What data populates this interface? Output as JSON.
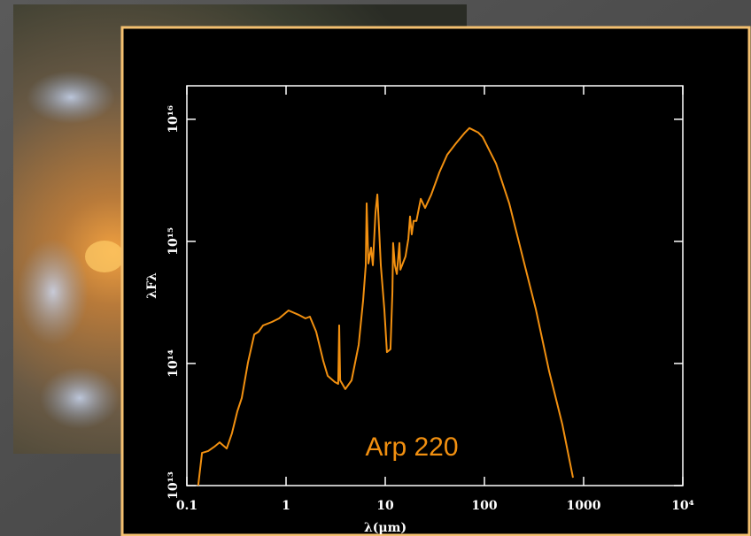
{
  "chart_data": {
    "type": "line",
    "annotation": "Arp 220",
    "x_label": "λ(μm)",
    "y_label": "λFλ",
    "log_x": true,
    "log_y": true,
    "xlim": [
      0.1,
      10000
    ],
    "ylim": [
      10000000000000.0,
      1.88e+16
    ],
    "xticks": [
      0.1,
      1,
      10,
      100,
      1000,
      {
        "value": 10000,
        "label": "10⁴"
      }
    ],
    "yticks": [
      {
        "value": 10000000000000.0,
        "label": "10¹³"
      },
      {
        "value": 100000000000000.0,
        "label": "10¹⁴"
      },
      {
        "value": 1000000000000000.0,
        "label": "10¹⁵"
      },
      {
        "value": 1e+16,
        "label": "10¹⁶"
      }
    ],
    "series": [
      {
        "color": "#f29010",
        "x": [
          0.13,
          0.142,
          0.164,
          0.189,
          0.214,
          0.252,
          0.285,
          0.323,
          0.358,
          0.413,
          0.478,
          0.529,
          0.586,
          0.72,
          0.85,
          1.06,
          1.33,
          1.57,
          1.74,
          2.01,
          2.37,
          2.63,
          3.1,
          3.36,
          3.43,
          3.51,
          3.96,
          4.58,
          5.4,
          5.98,
          6.36,
          6.5,
          6.77,
          7.2,
          7.5,
          7.98,
          8.32,
          8.67,
          9.03,
          9.79,
          10.4,
          11.3,
          11.8,
          12.0,
          12.5,
          13.1,
          13.9,
          14.2,
          16.0,
          17.1,
          17.8,
          18.5,
          19.3,
          20.6,
          22.8,
          25.2,
          29.1,
          35.1,
          42.2,
          51.8,
          63.6,
          70.5,
          86.7,
          96,
          131,
          178,
          242,
          330,
          449,
          611,
          782
        ],
        "values": [
          10000000000000.0,
          18500000000000.0,
          19200000000000.0,
          20800000000000.0,
          22600000000000.0,
          20100000000000.0,
          26800000000000.0,
          40600000000000.0,
          52200000000000.0,
          102000000000000.0,
          173000000000000.0,
          182000000000000.0,
          205000000000000.0,
          219000000000000.0,
          234000000000000.0,
          272000000000000.0,
          251000000000000.0,
          234000000000000.0,
          242000000000000.0,
          182000000000000.0,
          105000000000000.0,
          79200000000000.0,
          70500000000000.0,
          68100000000000.0,
          205000000000000.0,
          72800000000000.0,
          61700000000000.0,
          72800000000000.0,
          142000000000000.0,
          327000000000000.0,
          637000000000000.0,
          2050000000000000.0,
          659000000000000.0,
          889000000000000.0,
          637000000000000.0,
          1730000000000000.0,
          2420000000000000.0,
          1240000000000000.0,
          637000000000000.0,
          277000000000000.0,
          124000000000000.0,
          131000000000000.0,
          386000000000000.0,
          968000000000000.0,
          637000000000000.0,
          540000000000000.0,
          968000000000000.0,
          586000000000000.0,
          753000000000000.0,
          1050000000000000.0,
          1600000000000000.0,
          1140000000000000.0,
          1470000000000000.0,
          1470000000000000.0,
          2230000000000000.0,
          1880000000000000.0,
          2420000000000000.0,
          3670000000000000.0,
          5130000000000000.0,
          6370000000000000.0,
          7780000000000000.0,
          8470000000000000.0,
          7780000000000000.0,
          7160000000000000.0,
          4340000000000000.0,
          2050000000000000.0,
          753000000000000.0,
          277000000000000.0,
          86100000000000.0,
          31600000000000.0,
          11600000000000.0
        ]
      }
    ]
  }
}
